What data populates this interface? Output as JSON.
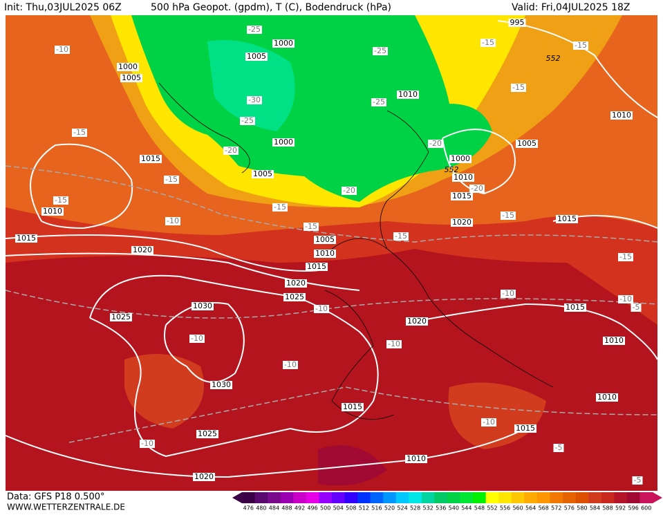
{
  "header": {
    "init": "Init: Thu,03JUL2025 06Z",
    "title": "500 hPa Geopot. (gpdm), T (C), Bodendruck (hPa)",
    "valid": "Valid: Fri,04JUL2025 18Z"
  },
  "pressure_labels": [
    "995",
    "1000",
    "1005",
    "1000",
    "1005",
    "1010",
    "1010",
    "1005",
    "1000",
    "1000",
    "1015",
    "1010",
    "1005",
    "1015",
    "1010",
    "1020",
    "1015",
    "1015",
    "1005",
    "1010",
    "1020",
    "1015",
    "1020",
    "1025",
    "1030",
    "1015",
    "1025",
    "1020",
    "1010",
    "1030",
    "1015",
    "1010",
    "1015",
    "1025",
    "1010",
    "1020"
  ],
  "temperature_labels": [
    "-25",
    "-10",
    "-25",
    "-15",
    "-15",
    "-15",
    "-30",
    "-25",
    "-25",
    "-15",
    "-20",
    "-20",
    "-20",
    "-20",
    "-15",
    "-15",
    "-15",
    "-15",
    "-10",
    "-15",
    "-15",
    "-15",
    "-10",
    "-10",
    "-5",
    "-10",
    "-10",
    "-10",
    "-10",
    "-10",
    "-10",
    "-5",
    "-5"
  ],
  "height_labels": [
    "552",
    "552"
  ],
  "footer": {
    "source": "Data: GFS P18 0.500°",
    "site": "WWW.WETTERZENTRALE.DE"
  },
  "colorbar": {
    "labels": [
      476,
      480,
      484,
      488,
      492,
      496,
      500,
      504,
      508,
      512,
      516,
      520,
      524,
      528,
      532,
      536,
      540,
      544,
      548,
      552,
      556,
      560,
      564,
      568,
      572,
      576,
      580,
      584,
      588,
      592,
      596,
      600
    ],
    "colors": [
      "#3c0046",
      "#5a0a6e",
      "#7a0a8c",
      "#9a00b0",
      "#c800c8",
      "#e600e6",
      "#9600ff",
      "#6400ff",
      "#3200ff",
      "#0032ff",
      "#0064ff",
      "#0096ff",
      "#00c8ff",
      "#00e6e6",
      "#00d2a0",
      "#00c864",
      "#00d246",
      "#00e632",
      "#00f000",
      "#ffff00",
      "#ffe600",
      "#ffc800",
      "#ffaa00",
      "#ff9600",
      "#f07800",
      "#e66400",
      "#dc5000",
      "#d23c1e",
      "#c8281e",
      "#b41428",
      "#a00a32",
      "#c8145a"
    ]
  }
}
